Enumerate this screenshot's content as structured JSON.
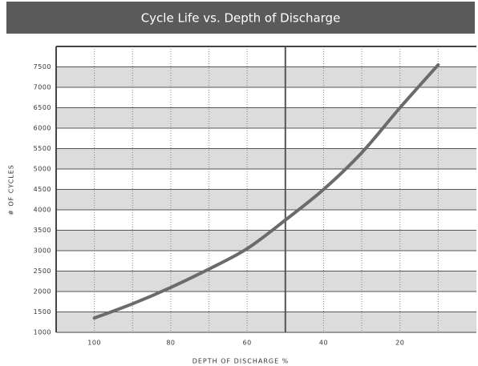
{
  "chart_data": {
    "type": "line",
    "title": "Cycle Life vs. Depth of Discharge",
    "x_label": "DEPTH OF DISCHARGE %",
    "y_label": "# OF CYCLES",
    "x": [
      100,
      90,
      80,
      70,
      60,
      50,
      40,
      30,
      20,
      10
    ],
    "series": [
      {
        "color": "#6b6b6b",
        "values": [
          1350,
          1700,
          2100,
          2550,
          3050,
          3750,
          4500,
          5400,
          6500,
          7550
        ]
      }
    ],
    "xlim": [
      110,
      0
    ],
    "xticks": [
      100,
      80,
      60,
      40,
      20
    ],
    "xticks_minor": [
      90,
      70,
      50,
      30,
      10
    ],
    "x_reference": 50,
    "ylim": [
      1000,
      8000
    ],
    "yticks": [
      1000,
      1500,
      2000,
      2500,
      3000,
      3500,
      4000,
      4500,
      5000,
      5500,
      6000,
      6500,
      7000,
      7500
    ],
    "grid": true,
    "bands": true
  }
}
